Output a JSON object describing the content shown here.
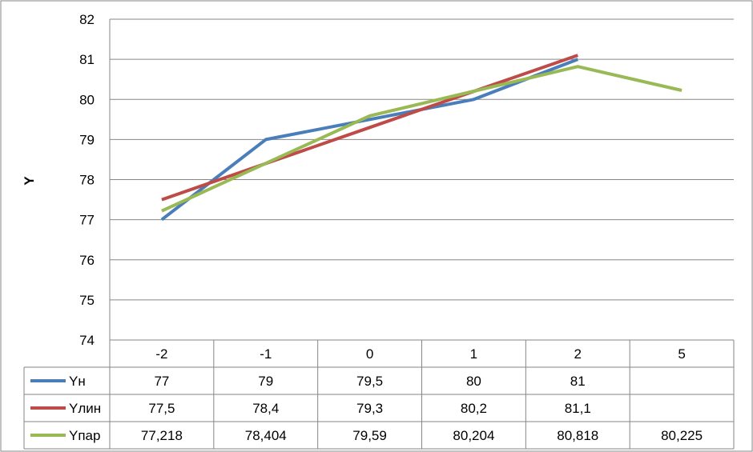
{
  "colors": {
    "border": "#868686",
    "grid": "#868686",
    "series": [
      "#4a7ebb",
      "#be4b48",
      "#98b954"
    ]
  },
  "chart_data": {
    "type": "line",
    "title": "",
    "xlabel": "",
    "ylabel": "Y",
    "ylim": [
      74,
      82
    ],
    "ytick_step": 1,
    "grid": true,
    "legend": "data-table-below",
    "categories": [
      "-2",
      "-1",
      "0",
      "1",
      "2",
      "5"
    ],
    "series": [
      {
        "name": "Yн",
        "values": [
          77,
          79,
          79.5,
          80,
          81,
          null
        ],
        "labels": [
          "77",
          "79",
          "79,5",
          "80",
          "81",
          ""
        ]
      },
      {
        "name": "Yлин",
        "values": [
          77.5,
          78.4,
          79.3,
          80.2,
          81.1,
          null
        ],
        "labels": [
          "77,5",
          "78,4",
          "79,3",
          "80,2",
          "81,1",
          ""
        ]
      },
      {
        "name": "Yпар",
        "values": [
          77.218,
          78.404,
          79.59,
          80.204,
          80.818,
          80.225
        ],
        "labels": [
          "77,218",
          "78,404",
          "79,59",
          "80,204",
          "80,818",
          "80,225"
        ]
      }
    ]
  }
}
